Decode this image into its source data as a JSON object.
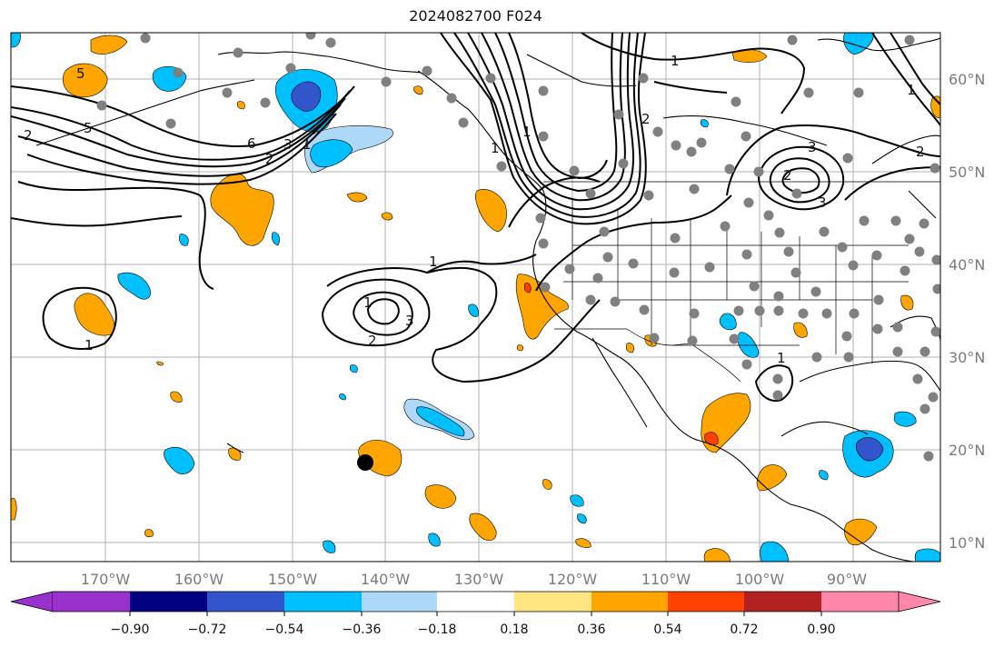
{
  "title": "2024082700 F024",
  "map": {
    "lon_labels": [
      "170°W",
      "160°W",
      "150°W",
      "140°W",
      "130°W",
      "120°W",
      "110°W",
      "100°W",
      "90°W"
    ],
    "lat_labels": [
      "60°N",
      "50°N",
      "40°N",
      "30°N",
      "20°N",
      "10°N"
    ],
    "contour_labels": [
      "5",
      "6",
      "2",
      "3",
      "1",
      "2",
      "1",
      "1",
      "1",
      "2",
      "3",
      "1",
      "2",
      "3",
      "1",
      "1",
      "5",
      "2",
      "1",
      "1",
      "2",
      "3"
    ],
    "colors": {
      "orange": "#ffa500",
      "deep_orange": "#ff4000",
      "cyan": "#00bfff",
      "light_blue": "#add8f7",
      "royal_blue": "#3355cc",
      "station": "#808080",
      "storm": "#000000"
    }
  },
  "colorbar": {
    "tick_labels": [
      "−0.90",
      "−0.72",
      "−0.54",
      "−0.36",
      "−0.18",
      "0.18",
      "0.36",
      "0.54",
      "0.72",
      "0.90"
    ],
    "colors": [
      "#9932cc",
      "#000080",
      "#3355cc",
      "#00bfff",
      "#add8f7",
      "#ffffff",
      "#ffe680",
      "#ffa500",
      "#ff4000",
      "#b22222",
      "#ff88aa"
    ]
  }
}
